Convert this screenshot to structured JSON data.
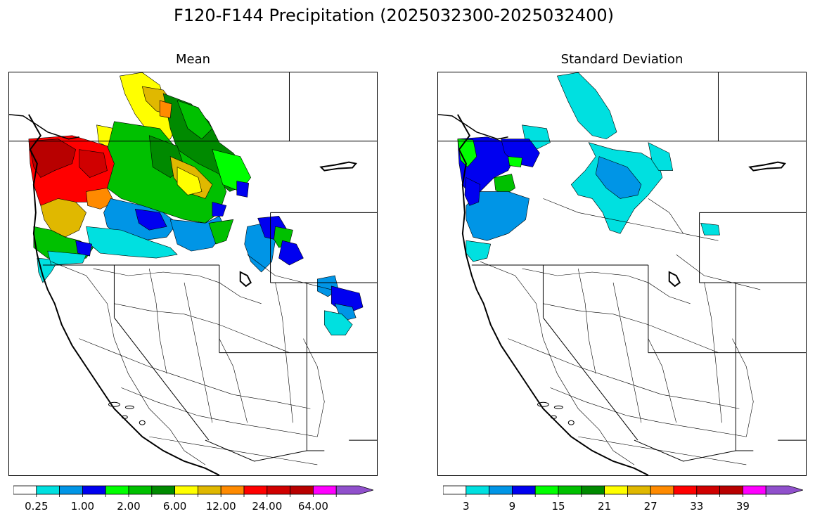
{
  "title": "F120-F144 Precipitation (2025032300-2025032400)",
  "panels": [
    {
      "id": "mean",
      "title": "Mean",
      "colorbar": {
        "colors": [
          "#ffffff",
          "#00e0e0",
          "#0095e6",
          "#0000f0",
          "#00ff00",
          "#00c000",
          "#008a00",
          "#ffff00",
          "#e0b800",
          "#ff8a00",
          "#ff0000",
          "#d00000",
          "#b80000",
          "#ff00ff",
          "#9050cc"
        ],
        "extend": "max",
        "tick_labels": [
          "0.25",
          "1.00",
          "2.00",
          "6.00",
          "12.00",
          "24.00",
          "64.00"
        ]
      }
    },
    {
      "id": "stddev",
      "title": "Standard Deviation",
      "colorbar": {
        "colors": [
          "#ffffff",
          "#00e0e0",
          "#0095e6",
          "#0000f0",
          "#00ff00",
          "#00c000",
          "#008a00",
          "#ffff00",
          "#e0b800",
          "#ff8a00",
          "#ff0000",
          "#d00000",
          "#b80000",
          "#ff00ff",
          "#9050cc"
        ],
        "extend": "max",
        "tick_labels": [
          "3",
          "9",
          "15",
          "21",
          "27",
          "33",
          "39"
        ]
      }
    }
  ]
}
